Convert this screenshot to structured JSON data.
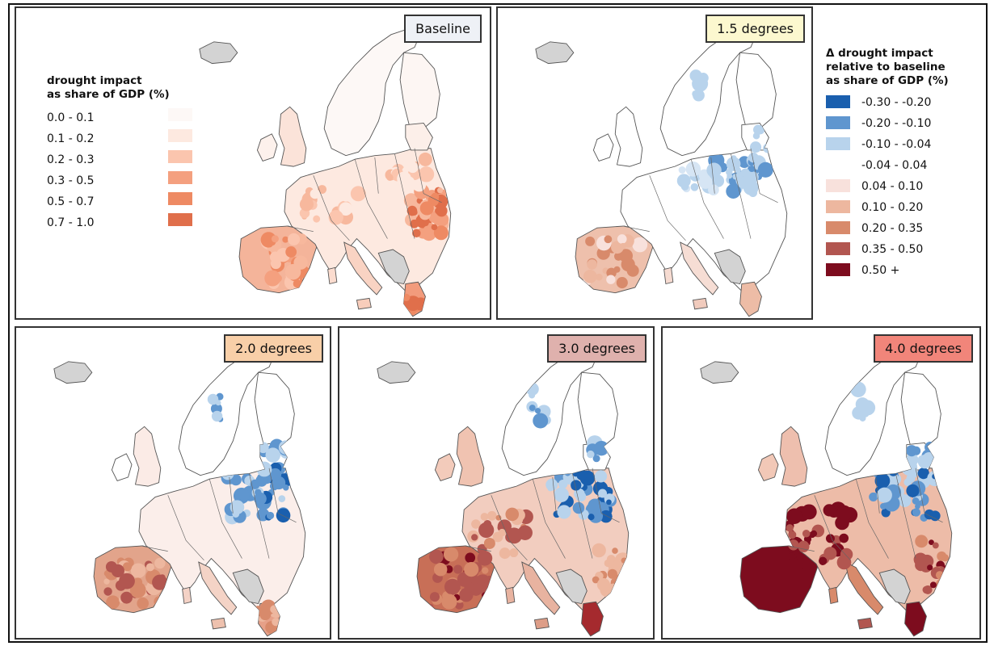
{
  "legend_baseline": {
    "title_line1": "drought impact",
    "title_line2": "as share of GDP (%)",
    "items": [
      {
        "label": "0.0 - 0.1",
        "color": "#fdf8f6"
      },
      {
        "label": "0.1 - 0.2",
        "color": "#fde9e0"
      },
      {
        "label": "0.2 - 0.3",
        "color": "#fbc5ae"
      },
      {
        "label": "0.3 - 0.5",
        "color": "#f4a07f"
      },
      {
        "label": "0.5 - 0.7",
        "color": "#ee8a63"
      },
      {
        "label": "0.7 - 1.0",
        "color": "#e06f4b"
      }
    ]
  },
  "legend_delta": {
    "title_line1": "Δ drought impact",
    "title_line2": "relative to baseline",
    "title_line3": "as share of GDP (%)",
    "items": [
      {
        "label": "-0.30 - -0.20",
        "color": "#1a5fae"
      },
      {
        "label": "-0.20 - -0.10",
        "color": "#5f96cf"
      },
      {
        "label": "-0.10 - -0.04",
        "color": "#b8d3ec"
      },
      {
        "label": "-0.04 - 0.04",
        "color": "#ffffff"
      },
      {
        "label": "0.04 - 0.10",
        "color": "#f8e1dc"
      },
      {
        "label": "0.10 - 0.20",
        "color": "#edb79f"
      },
      {
        "label": "0.20 - 0.35",
        "color": "#d88a6b"
      },
      {
        "label": "0.35 - 0.50",
        "color": "#b25650"
      },
      {
        "label": "0.50 +",
        "color": "#7d0c1e"
      }
    ]
  },
  "panels": [
    {
      "title": "Baseline",
      "label_color": "#eef1f6"
    },
    {
      "title": "1.5 degrees",
      "label_color": "#fcf8cf"
    },
    {
      "title": "2.0 degrees",
      "label_color": "#f8cfa8"
    },
    {
      "title": "3.0 degrees",
      "label_color": "#dfb1ad"
    },
    {
      "title": "4.0 degrees",
      "label_color": "#f1857a"
    }
  ],
  "colors": {
    "excluded_region": "#d3d3d3",
    "border": "#555555"
  }
}
